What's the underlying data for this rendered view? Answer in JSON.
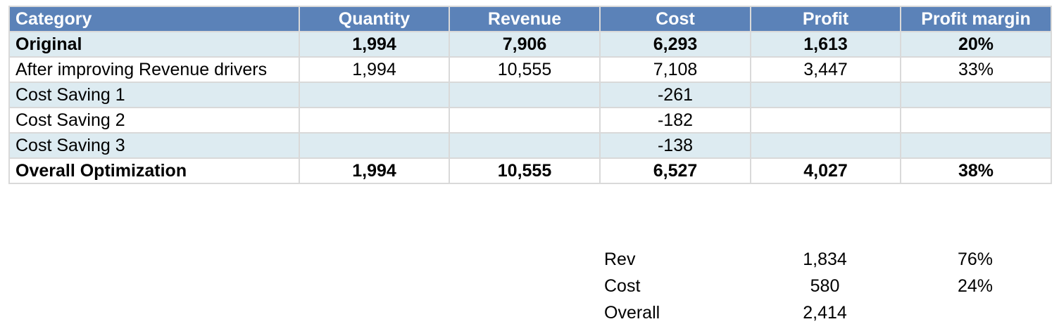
{
  "table": {
    "headers": {
      "category": "Category",
      "quantity": "Quantity",
      "revenue": "Revenue",
      "cost": "Cost",
      "profit": "Profit",
      "margin": "Profit margin"
    },
    "rows": [
      {
        "category": "Original",
        "quantity": "1,994",
        "revenue": "7,906",
        "cost": "6,293",
        "profit": "1,613",
        "margin": "20%"
      },
      {
        "category": "After improving Revenue drivers",
        "quantity": "1,994",
        "revenue": "10,555",
        "cost": "7,108",
        "profit": "3,447",
        "margin": "33%"
      },
      {
        "category": "Cost Saving 1",
        "quantity": "",
        "revenue": "",
        "cost": "-261",
        "profit": "",
        "margin": ""
      },
      {
        "category": "Cost Saving 2",
        "quantity": "",
        "revenue": "",
        "cost": "-182",
        "profit": "",
        "margin": ""
      },
      {
        "category": "Cost Saving 3",
        "quantity": "",
        "revenue": "",
        "cost": "-138",
        "profit": "",
        "margin": ""
      },
      {
        "category": "Overall Optimization",
        "quantity": "1,994",
        "revenue": "10,555",
        "cost": "6,527",
        "profit": "4,027",
        "margin": "38%"
      }
    ]
  },
  "summary": {
    "rows": [
      {
        "label": "Rev",
        "value": "1,834",
        "share": "76%"
      },
      {
        "label": "Cost",
        "value": "580",
        "share": "24%"
      },
      {
        "label": "Overall",
        "value": "2,414",
        "share": ""
      }
    ]
  },
  "colors": {
    "header_bg": "#5b82b8",
    "band_bg": "#ddebf1",
    "grid_line": "#d9d9d9"
  }
}
